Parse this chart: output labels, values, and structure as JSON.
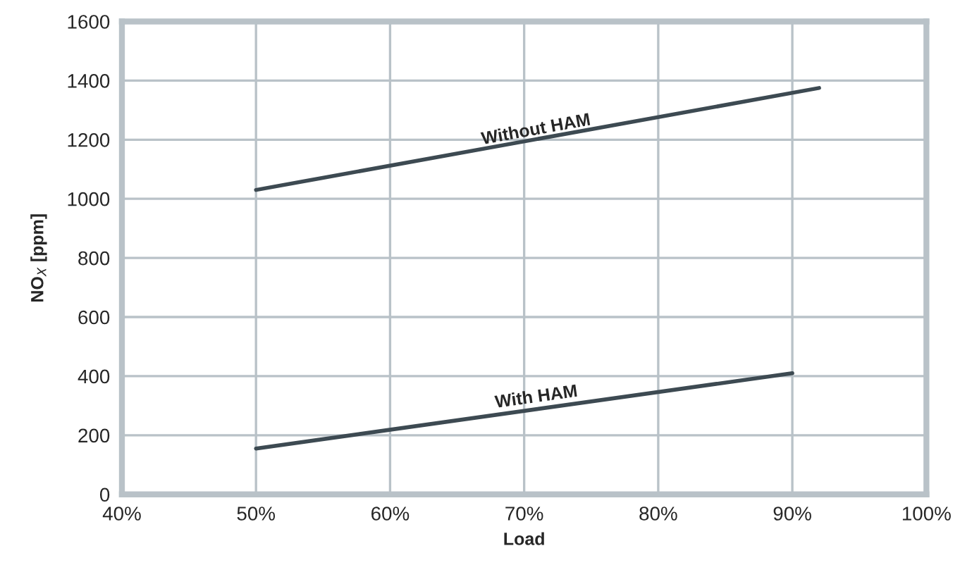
{
  "chart_data": {
    "type": "line",
    "xlabel": "Load",
    "ylabel": "NO$_{X}$ [ppm]",
    "series": [
      {
        "color": "#3d4a52",
        "x": [
          50,
          92
        ],
        "values": [
          1030,
          1375
        ]
      },
      {
        "color": "#3d4a52",
        "x": [
          50,
          90
        ],
        "values": [
          155,
          410
        ]
      }
    ],
    "annotations": [
      {
        "text": "Without HAM",
        "x": 71,
        "y": 1205
      },
      {
        "text": "With HAM",
        "x": 71,
        "y": 300
      }
    ],
    "xlim": [
      40,
      100
    ],
    "xticks": [
      {
        "value": 40,
        "label": "40%"
      },
      {
        "value": 50,
        "label": "50%"
      },
      {
        "value": 60,
        "label": "60%"
      },
      {
        "value": 70,
        "label": "70%"
      },
      {
        "value": 80,
        "label": "80%"
      },
      {
        "value": 90,
        "label": "90%"
      },
      {
        "value": 100,
        "label": "100%"
      }
    ],
    "ylim": [
      0,
      1600
    ],
    "yticks": [
      0,
      200,
      400,
      600,
      800,
      1000,
      1200,
      1400,
      1600
    ],
    "grid": true,
    "legend": false,
    "marker": "none",
    "line_style": "solid"
  }
}
